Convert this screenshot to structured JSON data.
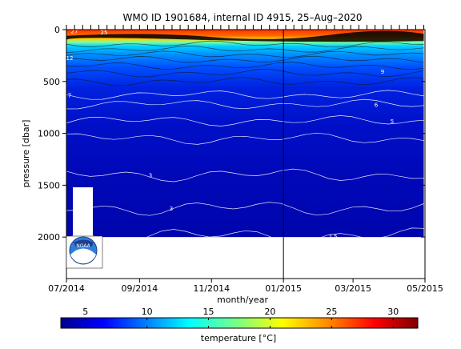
{
  "chart_data": {
    "type": "heatmap",
    "title": "WMO ID 1901684, internal ID 4915, 25–Aug–2020",
    "xlabel": "month/year",
    "ylabel": "pressure [dbar]",
    "x_ticks": [
      "07/2014",
      "09/2014",
      "11/2014",
      "01/2015",
      "03/2015",
      "05/2015"
    ],
    "xlim": [
      "2014-07-01",
      "2015-05-01"
    ],
    "ylim": [
      2400,
      0
    ],
    "y_ticks": [
      0,
      500,
      1000,
      1500,
      2000
    ],
    "profile_span": [
      "2014-07-01",
      "2015-04-30"
    ],
    "max_profile_depth": 2000,
    "vertical_marker": "2015-01-01",
    "colorbar": {
      "label": "temperature [°C]",
      "ticks": [
        5,
        10,
        15,
        20,
        25,
        30
      ],
      "range": [
        3,
        32
      ],
      "colormap": [
        "#00008f",
        "#0000ff",
        "#007fff",
        "#00ffff",
        "#7fff7f",
        "#ffff00",
        "#ff7f00",
        "#ff0000",
        "#7f0000"
      ]
    },
    "contours": [
      {
        "label": "27",
        "depth": 12
      },
      {
        "label": "25",
        "depth": 25
      },
      {
        "label": "12",
        "depth": 270
      },
      {
        "label": "9",
        "depth": 400
      },
      {
        "label": "7",
        "depth": 630
      },
      {
        "label": "6",
        "depth": 720
      },
      {
        "label": "5",
        "depth": 880
      },
      {
        "label": "3",
        "depth": 1400
      },
      {
        "label": "3",
        "depth": 1720
      },
      {
        "label": "2.5",
        "depth": 1990
      }
    ]
  },
  "logo": {
    "text": "NOAA",
    "colors": [
      "#1d3f8f",
      "#3fa9f5"
    ]
  }
}
